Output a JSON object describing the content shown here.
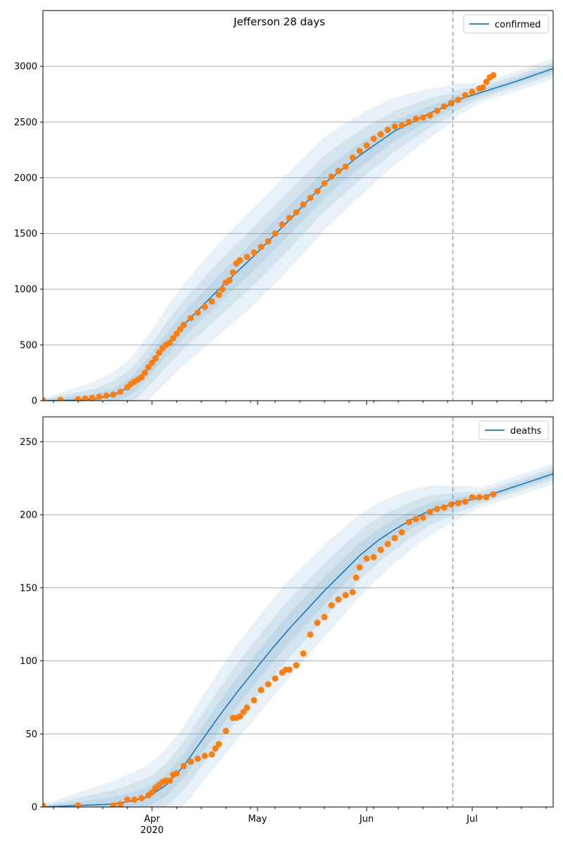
{
  "figure_title": "Jefferson 28 days",
  "x_ticks": [
    {
      "label": "Apr",
      "day": 31,
      "sub": "2020"
    },
    {
      "label": "May",
      "day": 61,
      "sub": ""
    },
    {
      "label": "Jun",
      "day": 92,
      "sub": ""
    },
    {
      "label": "Jul",
      "day": 122,
      "sub": ""
    }
  ],
  "colors": {
    "line": "#1f77b4",
    "points": "#ff7f0e",
    "band": "#1f77b4",
    "grid": "#b0b0b0"
  },
  "chart_data": [
    {
      "type": "line",
      "name": "confirmed-panel",
      "legend": "confirmed",
      "legend_position": "top-right",
      "x_unit": "days since Mar 1 2020",
      "xlim": [
        0,
        145
      ],
      "ylim": [
        0,
        3500
      ],
      "yticks": [
        0,
        500,
        1000,
        1500,
        2000,
        2500,
        3000
      ],
      "forecast_start_day": 116.5,
      "model_x": [
        0,
        10,
        15,
        20,
        25,
        30,
        35,
        40,
        50,
        60,
        70,
        80,
        90,
        100,
        110,
        116,
        117,
        125,
        135,
        145
      ],
      "model_y": [
        0,
        5,
        15,
        50,
        130,
        300,
        500,
        680,
        1000,
        1300,
        1620,
        1950,
        2200,
        2420,
        2580,
        2660,
        2690,
        2770,
        2870,
        2980
      ],
      "band_half_widths_fraction": [
        0.06,
        0.12,
        0.2
      ],
      "observed_x": [
        0,
        5,
        10,
        12,
        14,
        16,
        18,
        20,
        22,
        24,
        25,
        26,
        27,
        28,
        29,
        30,
        31,
        32,
        33,
        34,
        35,
        36,
        37,
        38,
        39,
        40,
        42,
        44,
        46,
        48,
        50,
        51,
        52,
        53,
        54,
        55,
        56,
        58,
        60,
        62,
        64,
        66,
        68,
        70,
        72,
        74,
        76,
        78,
        80,
        82,
        84,
        86,
        88,
        90,
        92,
        94,
        96,
        98,
        100,
        102,
        104,
        106,
        108,
        110,
        112,
        114,
        116,
        118,
        120,
        122,
        124,
        125,
        126,
        127,
        128
      ],
      "observed_y": [
        5,
        7,
        12,
        18,
        25,
        35,
        45,
        55,
        80,
        120,
        150,
        170,
        190,
        210,
        250,
        300,
        340,
        380,
        430,
        470,
        500,
        520,
        560,
        600,
        640,
        680,
        740,
        790,
        840,
        890,
        950,
        1000,
        1060,
        1080,
        1150,
        1230,
        1260,
        1290,
        1330,
        1380,
        1430,
        1500,
        1580,
        1640,
        1690,
        1760,
        1820,
        1880,
        1950,
        2010,
        2060,
        2100,
        2180,
        2240,
        2290,
        2350,
        2390,
        2430,
        2460,
        2470,
        2500,
        2530,
        2540,
        2560,
        2600,
        2640,
        2670,
        2700,
        2740,
        2770,
        2800,
        2810,
        2860,
        2900,
        2920
      ]
    },
    {
      "type": "line",
      "name": "deaths-panel",
      "legend": "deaths",
      "legend_position": "top-right",
      "x_unit": "days since Mar 1 2020",
      "xlim": [
        0,
        145
      ],
      "ylim": [
        0,
        267
      ],
      "yticks": [
        0,
        50,
        100,
        150,
        200,
        250
      ],
      "forecast_start_day": 116.5,
      "model_x": [
        0,
        10,
        20,
        25,
        30,
        35,
        40,
        45,
        50,
        55,
        60,
        65,
        70,
        75,
        80,
        85,
        90,
        95,
        100,
        105,
        110,
        116,
        117,
        125,
        135,
        145
      ],
      "model_y": [
        0,
        1,
        2,
        4,
        7,
        15,
        28,
        45,
        62,
        78,
        93,
        108,
        122,
        135,
        148,
        160,
        172,
        182,
        190,
        197,
        203,
        207,
        208,
        212,
        220,
        228
      ],
      "band_half_widths_fraction": [
        0.06,
        0.12,
        0.2
      ],
      "observed_x": [
        0,
        10,
        20,
        22,
        24,
        26,
        28,
        30,
        31,
        32,
        33,
        34,
        35,
        36,
        37,
        38,
        40,
        42,
        44,
        46,
        48,
        49,
        50,
        52,
        54,
        55,
        56,
        57,
        58,
        60,
        62,
        64,
        66,
        68,
        69,
        70,
        72,
        74,
        76,
        78,
        80,
        82,
        84,
        86,
        88,
        89,
        90,
        92,
        94,
        96,
        98,
        100,
        102,
        104,
        106,
        108,
        110,
        112,
        114,
        116,
        118,
        120,
        122,
        124,
        126,
        128
      ],
      "observed_y": [
        1,
        1,
        1,
        2,
        5,
        5,
        6,
        8,
        10,
        13,
        15,
        17,
        18,
        18,
        22,
        23,
        28,
        31,
        33,
        35,
        36,
        40,
        43,
        52,
        61,
        61,
        62,
        65,
        68,
        73,
        80,
        84,
        88,
        92,
        94,
        94,
        97,
        105,
        118,
        126,
        130,
        138,
        142,
        145,
        147,
        157,
        164,
        170,
        171,
        176,
        180,
        184,
        188,
        195,
        197,
        198,
        202,
        204,
        205,
        207,
        208,
        209,
        212,
        212,
        212,
        214
      ]
    }
  ]
}
